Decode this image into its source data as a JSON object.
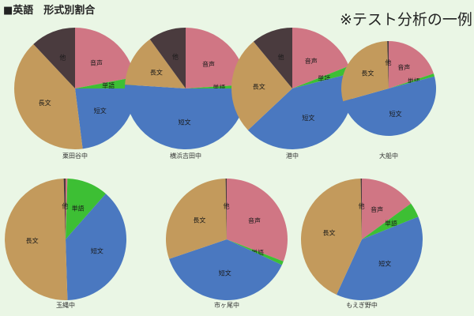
{
  "header": {
    "title": "■英語　形式別割合",
    "note": "※テスト分析の一例"
  },
  "colors": {
    "音声": "#d07684",
    "単語": "#3dbf34",
    "短文": "#4a78c0",
    "長文": "#c39a5c",
    "他": "#4a3b3e",
    "background": "#eaf6e5"
  },
  "chart_data": [
    {
      "type": "pie",
      "title": "栗田谷中",
      "categories": [
        "音声",
        "単語",
        "短文",
        "長文",
        "他"
      ],
      "values": [
        22,
        3,
        23,
        40,
        12
      ]
    },
    {
      "type": "pie",
      "title": "横浜吉田中",
      "categories": [
        "音声",
        "単語",
        "短文",
        "長文",
        "他"
      ],
      "values": [
        24,
        1,
        51,
        14,
        10
      ]
    },
    {
      "type": "pie",
      "title": "港中",
      "categories": [
        "音声",
        "単語",
        "短文",
        "長文",
        "他"
      ],
      "values": [
        19,
        2,
        42,
        26,
        11
      ]
    },
    {
      "type": "pie",
      "title": "大船中",
      "categories": [
        "音声",
        "単語",
        "短文",
        "長文",
        "他"
      ],
      "values": [
        20,
        1,
        50,
        29,
        0.5
      ]
    },
    {
      "type": "pie",
      "title": "玉縄中",
      "categories": [
        "音声",
        "単語",
        "短文",
        "長文",
        "他"
      ],
      "values": [
        0.5,
        11,
        38,
        50,
        0.5
      ]
    },
    {
      "type": "pie",
      "title": "市ヶ尾中",
      "categories": [
        "音声",
        "単語",
        "短文",
        "長文",
        "他"
      ],
      "values": [
        31,
        1,
        38,
        30,
        0.3
      ]
    },
    {
      "type": "pie",
      "title": "もえぎ野中",
      "categories": [
        "音声",
        "単語",
        "短文",
        "長文",
        "他"
      ],
      "values": [
        15,
        4,
        38,
        43,
        0.3
      ]
    }
  ]
}
